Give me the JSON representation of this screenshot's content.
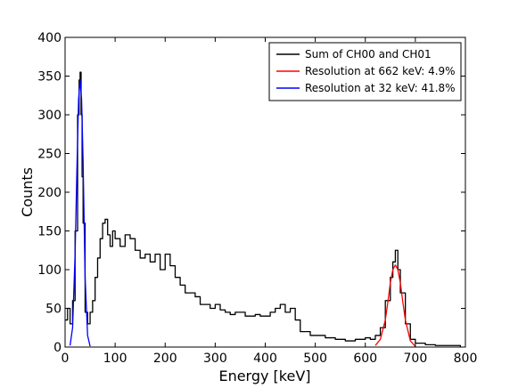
{
  "chart_data": {
    "type": "line",
    "title": "",
    "xlabel": "Energy [keV]",
    "ylabel": "Counts",
    "xlim": [
      0,
      800
    ],
    "ylim": [
      0,
      400
    ],
    "xticks": [
      0,
      100,
      200,
      300,
      400,
      500,
      600,
      700,
      800
    ],
    "yticks": [
      0,
      50,
      100,
      150,
      200,
      250,
      300,
      350,
      400
    ],
    "grid": false,
    "legend_position": "top-right",
    "series": [
      {
        "name": "Sum of CH00 and CH01",
        "color": "#000000",
        "style": "steps",
        "x": [
          0,
          5,
          10,
          15,
          20,
          25,
          28,
          30,
          32,
          34,
          36,
          40,
          45,
          50,
          55,
          60,
          65,
          70,
          75,
          80,
          85,
          90,
          95,
          100,
          110,
          120,
          130,
          140,
          150,
          160,
          170,
          180,
          190,
          200,
          210,
          220,
          230,
          240,
          250,
          260,
          270,
          280,
          290,
          300,
          310,
          320,
          330,
          340,
          350,
          360,
          370,
          380,
          390,
          400,
          410,
          420,
          430,
          440,
          450,
          460,
          470,
          480,
          490,
          500,
          520,
          540,
          560,
          580,
          600,
          610,
          620,
          630,
          640,
          650,
          655,
          660,
          665,
          670,
          680,
          690,
          700,
          720,
          740,
          760,
          780,
          790
        ],
        "y": [
          35,
          50,
          30,
          60,
          150,
          300,
          345,
          355,
          300,
          220,
          160,
          45,
          30,
          45,
          60,
          90,
          115,
          140,
          160,
          165,
          145,
          130,
          150,
          140,
          130,
          145,
          140,
          125,
          115,
          120,
          110,
          120,
          100,
          120,
          105,
          90,
          80,
          70,
          70,
          65,
          55,
          55,
          50,
          55,
          48,
          45,
          42,
          45,
          45,
          40,
          40,
          42,
          40,
          40,
          45,
          50,
          55,
          45,
          50,
          35,
          20,
          20,
          15,
          15,
          12,
          10,
          8,
          10,
          12,
          10,
          15,
          25,
          60,
          90,
          110,
          125,
          100,
          70,
          30,
          10,
          5,
          3,
          2,
          2,
          2,
          0
        ]
      },
      {
        "name": "Resolution at 662 keV: 4.9%",
        "color": "#ff0000",
        "style": "line",
        "x": [
          620,
          630,
          640,
          645,
          650,
          655,
          660,
          665,
          670,
          675,
          680,
          690,
          700
        ],
        "y": [
          2,
          10,
          35,
          58,
          83,
          100,
          106,
          100,
          83,
          58,
          35,
          8,
          1
        ]
      },
      {
        "name": "Resolution at 32 keV: 41.8%",
        "color": "#0000ff",
        "style": "line",
        "x": [
          10,
          15,
          20,
          24,
          27,
          30,
          33,
          36,
          40,
          45,
          50
        ],
        "y": [
          2,
          25,
          120,
          240,
          320,
          345,
          320,
          240,
          90,
          15,
          1
        ]
      }
    ]
  }
}
